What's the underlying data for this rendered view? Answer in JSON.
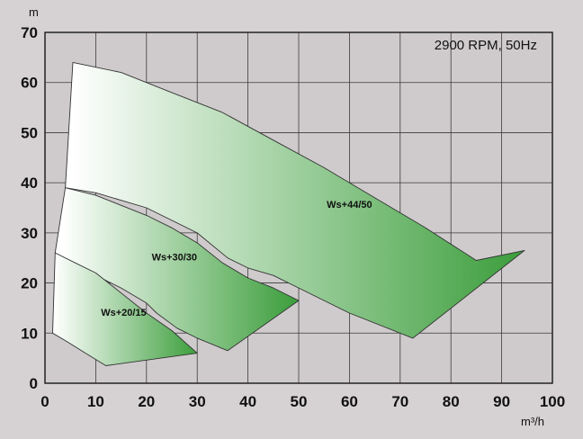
{
  "chart_data": {
    "type": "area",
    "annotation": "2900 RPM, 50Hz",
    "xlabel": "m³/h",
    "ylabel": "m",
    "xlim": [
      0,
      100
    ],
    "ylim": [
      0,
      70
    ],
    "xticks": [
      0,
      10,
      20,
      30,
      40,
      50,
      60,
      70,
      80,
      90,
      100
    ],
    "yticks": [
      0,
      10,
      20,
      30,
      40,
      50,
      60,
      70
    ],
    "grid": true,
    "colors": {
      "fill_start": "#ffffff",
      "fill_end": "#3a9d3a",
      "background": "#d6d2d3",
      "plot_bg": "#cfcbcc",
      "grid": "#3a3a3a"
    },
    "series": [
      {
        "name": "Ws+44/50",
        "label_at": [
          60,
          35
        ],
        "top": [
          [
            5.5,
            64
          ],
          [
            15,
            62
          ],
          [
            25,
            58
          ],
          [
            35,
            54
          ],
          [
            45,
            48.5
          ],
          [
            55,
            43
          ],
          [
            65,
            37
          ],
          [
            75,
            31
          ],
          [
            85,
            24.5
          ],
          [
            94.5,
            26.5
          ]
        ],
        "bottom": [
          [
            72.5,
            9
          ],
          [
            60,
            14
          ],
          [
            50,
            19
          ],
          [
            45,
            21.5
          ],
          [
            40,
            23
          ],
          [
            36,
            25
          ],
          [
            30,
            30
          ],
          [
            20,
            35
          ],
          [
            10,
            38
          ],
          [
            4,
            39
          ]
        ]
      },
      {
        "name": "Ws+30/30",
        "label_at": [
          25.5,
          24.5
        ],
        "top": [
          [
            4,
            39
          ],
          [
            10,
            37.5
          ],
          [
            20,
            33.5
          ],
          [
            25,
            31
          ],
          [
            30,
            28
          ],
          [
            35,
            24
          ],
          [
            40,
            21
          ],
          [
            45,
            19
          ],
          [
            50,
            16.5
          ]
        ],
        "bottom": [
          [
            36,
            6.5
          ],
          [
            30,
            9
          ],
          [
            26,
            11
          ],
          [
            22,
            14
          ],
          [
            20,
            16
          ],
          [
            15,
            19
          ],
          [
            10,
            21.5
          ],
          [
            2,
            26
          ]
        ]
      },
      {
        "name": "Ws+20/15",
        "label_at": [
          15.5,
          13.5
        ],
        "top": [
          [
            2,
            26
          ],
          [
            6,
            24
          ],
          [
            10,
            22
          ],
          [
            15,
            18
          ],
          [
            20,
            14
          ],
          [
            25,
            10.5
          ],
          [
            30,
            6
          ]
        ],
        "bottom": [
          [
            12,
            3.5
          ],
          [
            8,
            6
          ],
          [
            4,
            8.5
          ],
          [
            1.5,
            10
          ]
        ]
      }
    ]
  }
}
